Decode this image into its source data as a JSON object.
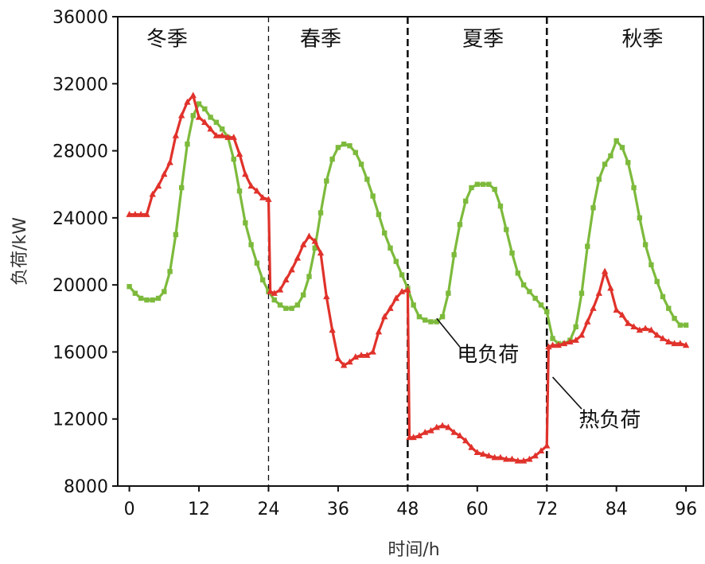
{
  "colors": {
    "electric": "#7dba3c",
    "heat": "#e0322b",
    "axis": "#111111"
  },
  "chart_data": {
    "type": "line",
    "xlabel": "时间/h",
    "ylabel": "负荷/kW",
    "xlim": [
      -2,
      99
    ],
    "ylim": [
      8000,
      36000
    ],
    "xticks": [
      0,
      12,
      24,
      36,
      48,
      60,
      72,
      84,
      96
    ],
    "xtick_labels": [
      "0",
      "12",
      "24",
      "36",
      "48",
      "60",
      "72",
      "84",
      "96"
    ],
    "yticks": [
      8000,
      12000,
      16000,
      20000,
      24000,
      28000,
      32000,
      36000
    ],
    "ytick_labels": [
      "8000",
      "12000",
      "16000",
      "20000",
      "24000",
      "28000",
      "32000",
      "36000"
    ],
    "grid": false,
    "dividers": [
      {
        "x": 24,
        "style": "thin-dashed"
      },
      {
        "x": 48,
        "style": "thick-dashed"
      },
      {
        "x": 72,
        "style": "thick-dashed"
      }
    ],
    "seasons": [
      {
        "label": "冬季",
        "x": 6.5,
        "y": 34700
      },
      {
        "label": "春季",
        "x": 33,
        "y": 34700
      },
      {
        "label": "夏季",
        "x": 61,
        "y": 34700
      },
      {
        "label": "秋季",
        "x": 88.5,
        "y": 34700
      }
    ],
    "annotations": [
      {
        "label": "电负荷",
        "x_from": 53,
        "y_from": 18000,
        "x_to": 57,
        "y_to": 16300,
        "tx": 56.5,
        "ty": 15900
      },
      {
        "label": "热负荷",
        "x_from": 73,
        "y_from": 14500,
        "x_to": 78,
        "y_to": 12600,
        "tx": 77.5,
        "ty": 12000
      }
    ],
    "series": [
      {
        "key": "electric",
        "marker": "square",
        "x": [
          0,
          1,
          2,
          3,
          4,
          5,
          6,
          7,
          8,
          9,
          10,
          11,
          12,
          13,
          14,
          15,
          16,
          17,
          18,
          19,
          20,
          21,
          22,
          23,
          24,
          25,
          26,
          27,
          28,
          29,
          30,
          31,
          32,
          33,
          34,
          35,
          36,
          37,
          38,
          39,
          40,
          41,
          42,
          43,
          44,
          45,
          46,
          47,
          48,
          49,
          50,
          51,
          52,
          53,
          54,
          55,
          56,
          57,
          58,
          59,
          60,
          61,
          62,
          63,
          64,
          65,
          66,
          67,
          68,
          69,
          70,
          71,
          72,
          73,
          74,
          75,
          76,
          77,
          78,
          79,
          80,
          81,
          82,
          83,
          84,
          85,
          86,
          87,
          88,
          89,
          90,
          91,
          92,
          93,
          94,
          95,
          96
        ],
        "values": [
          19900,
          19500,
          19200,
          19100,
          19100,
          19200,
          19600,
          20800,
          23000,
          25800,
          28400,
          30100,
          30800,
          30500,
          30000,
          29700,
          29300,
          28800,
          27500,
          25600,
          23700,
          22400,
          21300,
          20300,
          19600,
          19100,
          18800,
          18600,
          18600,
          18800,
          19400,
          20500,
          22200,
          24300,
          26200,
          27500,
          28200,
          28400,
          28300,
          27900,
          27200,
          26300,
          25300,
          24200,
          23100,
          22200,
          21400,
          20600,
          19800,
          18800,
          18100,
          17900,
          17800,
          17800,
          18100,
          19500,
          21800,
          23600,
          25000,
          25800,
          26000,
          26000,
          26000,
          25700,
          24700,
          23300,
          21900,
          20700,
          20000,
          19600,
          19200,
          18800,
          18400,
          16800,
          16500,
          16500,
          16700,
          17500,
          19500,
          22300,
          24600,
          26300,
          27200,
          27700,
          28600,
          28200,
          27300,
          25800,
          24000,
          22400,
          21200,
          20200,
          19300,
          18600,
          18000,
          17600,
          17600
        ]
      },
      {
        "key": "heat",
        "marker": "triangle",
        "x": [
          0,
          1,
          2,
          3,
          4,
          5,
          6,
          7,
          8,
          9,
          10,
          11,
          12,
          13,
          14,
          15,
          16,
          17,
          18,
          19,
          20,
          21,
          22,
          23,
          24,
          24.3,
          25,
          26,
          27,
          28,
          29,
          30,
          31,
          32,
          33,
          34,
          35,
          36,
          37,
          38,
          39,
          40,
          41,
          42,
          43,
          44,
          45,
          46,
          47,
          48,
          48.3,
          49,
          50,
          51,
          52,
          53,
          54,
          55,
          56,
          57,
          58,
          59,
          60,
          61,
          62,
          63,
          64,
          65,
          66,
          67,
          68,
          69,
          70,
          71,
          72,
          72.3,
          73,
          74,
          75,
          76,
          77,
          78,
          79,
          80,
          81,
          82,
          83,
          84,
          85,
          86,
          87,
          88,
          89,
          90,
          91,
          92,
          93,
          94,
          95,
          96
        ],
        "values": [
          24200,
          24200,
          24200,
          24200,
          25400,
          25900,
          26600,
          27300,
          28900,
          30100,
          30900,
          31300,
          30000,
          29700,
          29300,
          28900,
          28900,
          28800,
          28800,
          27800,
          26600,
          25900,
          25600,
          25200,
          25100,
          19600,
          19500,
          19700,
          20300,
          20900,
          21600,
          22400,
          22900,
          22600,
          21900,
          19300,
          17300,
          15600,
          15200,
          15400,
          15700,
          15800,
          15800,
          16000,
          17200,
          18100,
          18600,
          19200,
          19600,
          19700,
          10900,
          10900,
          11000,
          11200,
          11300,
          11500,
          11600,
          11500,
          11200,
          11000,
          10700,
          10300,
          10000,
          9900,
          9800,
          9700,
          9700,
          9600,
          9600,
          9500,
          9500,
          9600,
          9800,
          10100,
          10400,
          16300,
          16400,
          16400,
          16500,
          16600,
          16700,
          17000,
          17800,
          18600,
          19500,
          20800,
          19800,
          18500,
          18200,
          17700,
          17500,
          17300,
          17400,
          17300,
          17000,
          16800,
          16600,
          16500,
          16500,
          16400
        ]
      }
    ]
  }
}
